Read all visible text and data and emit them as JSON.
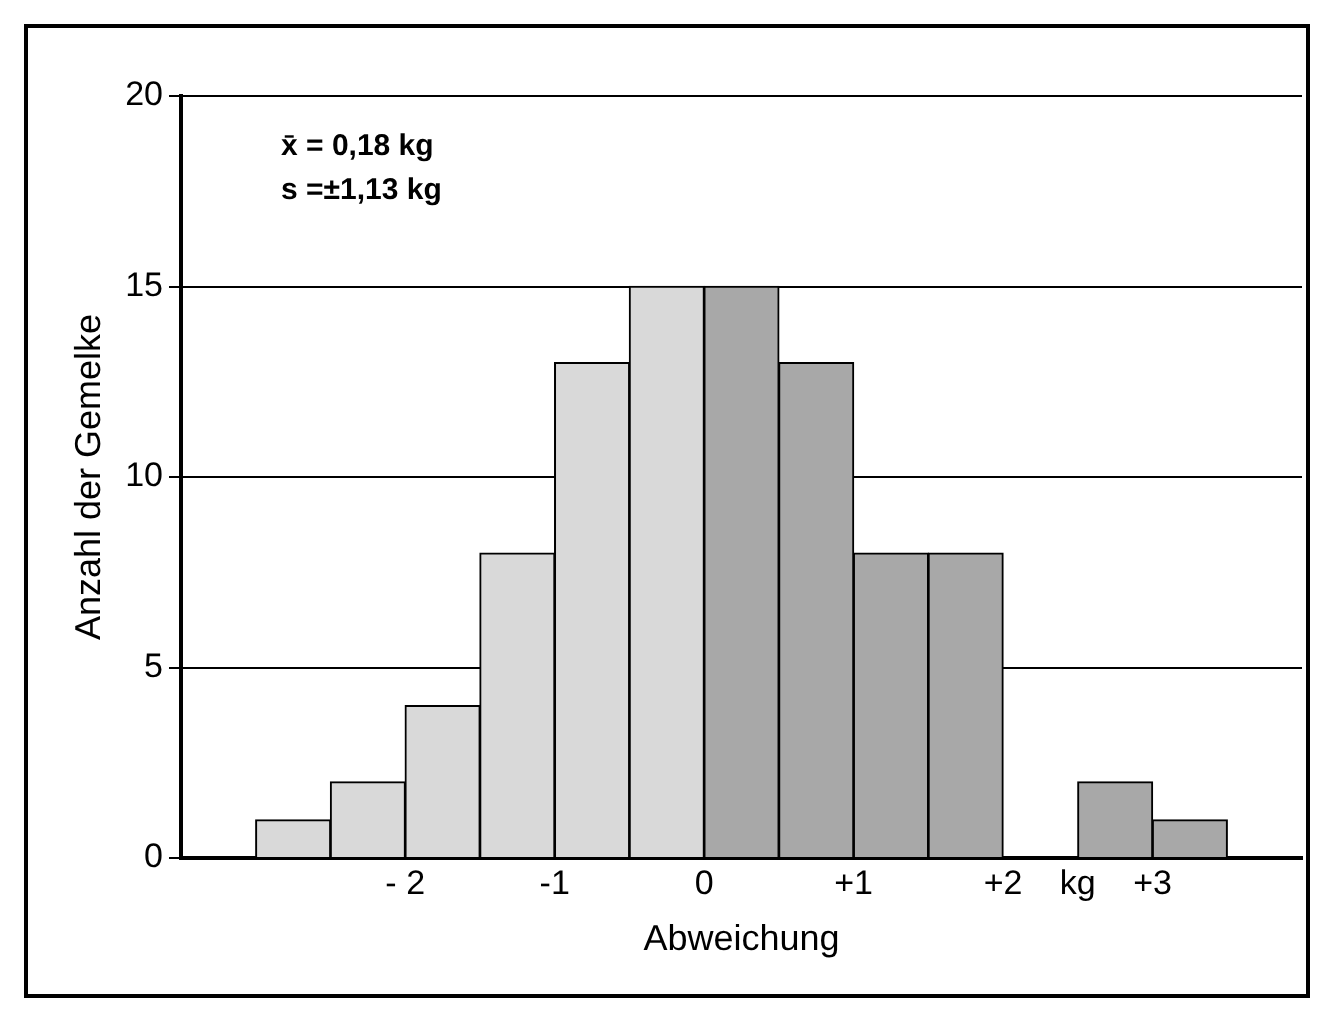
{
  "chart_data": {
    "type": "histogram",
    "xlabel": "Abweichung",
    "ylabel": "Anzahl der Gemelke",
    "annotations": [
      "x̄ = 0,18 kg",
      "s =±1,13 kg"
    ],
    "bins": [
      -3,
      -2.5,
      -2,
      -1.5,
      -1,
      -0.5,
      0,
      0.5,
      1,
      1.5,
      2,
      2.5,
      3,
      3.5
    ],
    "values": [
      1,
      2,
      4,
      8,
      13,
      15,
      15,
      13,
      8,
      8,
      0,
      2,
      1
    ],
    "colors": [
      "#d9d9d9",
      "#d9d9d9",
      "#d9d9d9",
      "#d9d9d9",
      "#d9d9d9",
      "#d9d9d9",
      "#a8a8a8",
      "#a8a8a8",
      "#a8a8a8",
      "#a8a8a8",
      "#a8a8a8",
      "#a8a8a8",
      "#a8a8a8"
    ],
    "xlim": [
      -3.5,
      4
    ],
    "xticks": [
      {
        "value": -2,
        "label": "- 2"
      },
      {
        "value": -1,
        "label": "-1"
      },
      0,
      {
        "value": 1,
        "label": "+1"
      },
      {
        "value": 2,
        "label": "+2"
      },
      {
        "value": 2.5,
        "label": "kg"
      },
      {
        "value": 3,
        "label": "+3"
      }
    ],
    "ylim": [
      0,
      20
    ],
    "yticks": [
      0,
      5,
      10,
      15,
      20
    ],
    "grid": "y",
    "legend": false
  }
}
